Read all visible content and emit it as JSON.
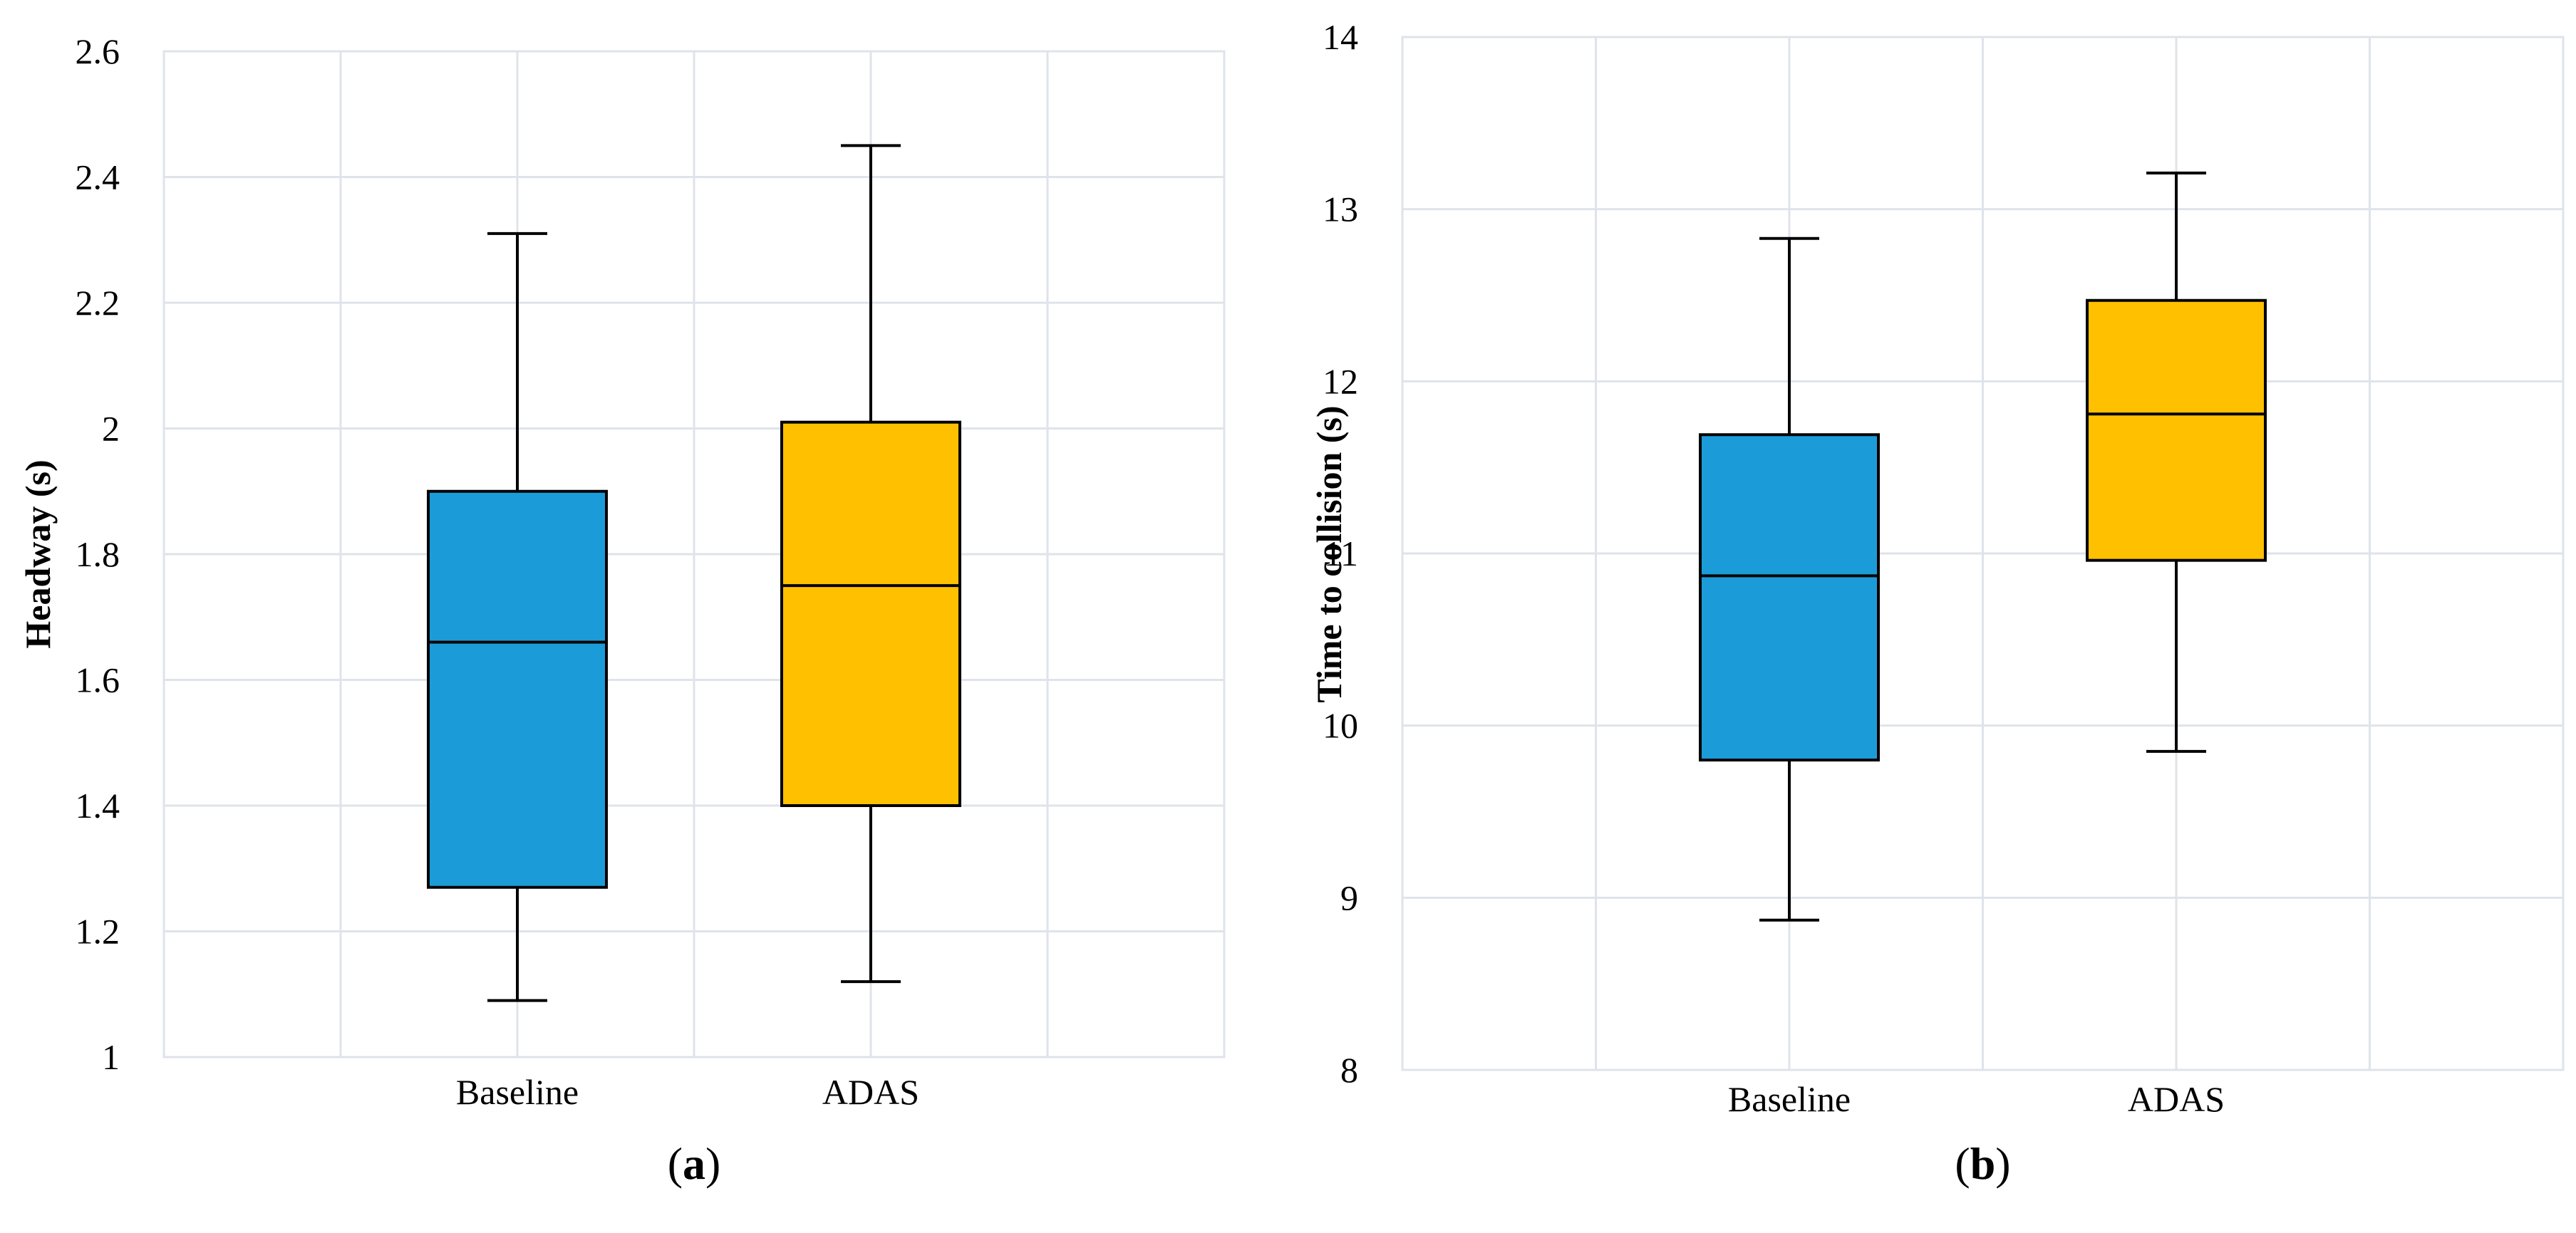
{
  "chart_data": [
    {
      "type": "boxplot",
      "panel_label": {
        "open": "(",
        "letter": "a",
        "close": ")"
      },
      "ylabel": "Headway (s)",
      "xlabel": "",
      "ylim": [
        1,
        2.6
      ],
      "yticks": [
        1,
        1.2,
        1.4,
        1.6,
        1.8,
        2,
        2.2,
        2.4,
        2.6
      ],
      "ytick_labels": [
        "1",
        "1.2",
        "1.4",
        "1.6",
        "1.8",
        "2",
        "2.2",
        "2.4",
        "2.6"
      ],
      "grid": true,
      "categories": [
        "Baseline",
        "ADAS"
      ],
      "series": [
        {
          "name": "Baseline",
          "color": "#1b9cd9",
          "min": 1.09,
          "q1": 1.27,
          "median": 1.66,
          "q3": 1.9,
          "max": 2.31
        },
        {
          "name": "ADAS",
          "color": "#ffc000",
          "min": 1.12,
          "q1": 1.4,
          "median": 1.75,
          "q3": 2.01,
          "max": 2.45
        }
      ]
    },
    {
      "type": "boxplot",
      "panel_label": {
        "open": "(",
        "letter": "b",
        "close": ")"
      },
      "ylabel": "Time to collision (s)",
      "xlabel": "",
      "ylim": [
        8,
        14
      ],
      "yticks": [
        8,
        9,
        10,
        11,
        12,
        13,
        14
      ],
      "ytick_labels": [
        "8",
        "9",
        "10",
        "11",
        "12",
        "13",
        "14"
      ],
      "grid": true,
      "categories": [
        "Baseline",
        "ADAS"
      ],
      "series": [
        {
          "name": "Baseline",
          "color": "#1b9cd9",
          "min": 8.87,
          "q1": 9.8,
          "median": 10.87,
          "q3": 11.69,
          "max": 12.83
        },
        {
          "name": "ADAS",
          "color": "#ffc000",
          "min": 9.85,
          "q1": 10.96,
          "median": 11.81,
          "q3": 12.47,
          "max": 13.21
        }
      ]
    }
  ]
}
